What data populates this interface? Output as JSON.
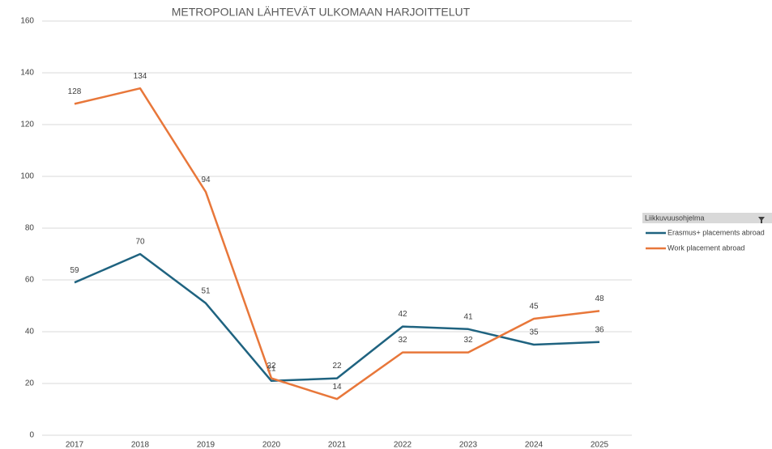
{
  "chart_data": {
    "type": "line",
    "title": "METROPOLIAN LÄHTEVÄT ULKOMAAN HARJOITTELUT",
    "categories": [
      "2017",
      "2018",
      "2019",
      "2020",
      "2021",
      "2022",
      "2023",
      "2024",
      "2025"
    ],
    "series": [
      {
        "name": "Erasmus+ placements abroad",
        "color": "#1f6380",
        "values": [
          59,
          70,
          51,
          21,
          22,
          42,
          41,
          35,
          36
        ]
      },
      {
        "name": "Work placement abroad",
        "color": "#e8773a",
        "values": [
          128,
          134,
          94,
          22,
          14,
          32,
          32,
          45,
          48
        ]
      }
    ],
    "ylim": [
      0,
      160
    ],
    "yticks": [
      0,
      20,
      40,
      60,
      80,
      100,
      120,
      140,
      160
    ],
    "grid": true,
    "legend_title": "Liikkuvuusohjelma",
    "legend": "right"
  }
}
